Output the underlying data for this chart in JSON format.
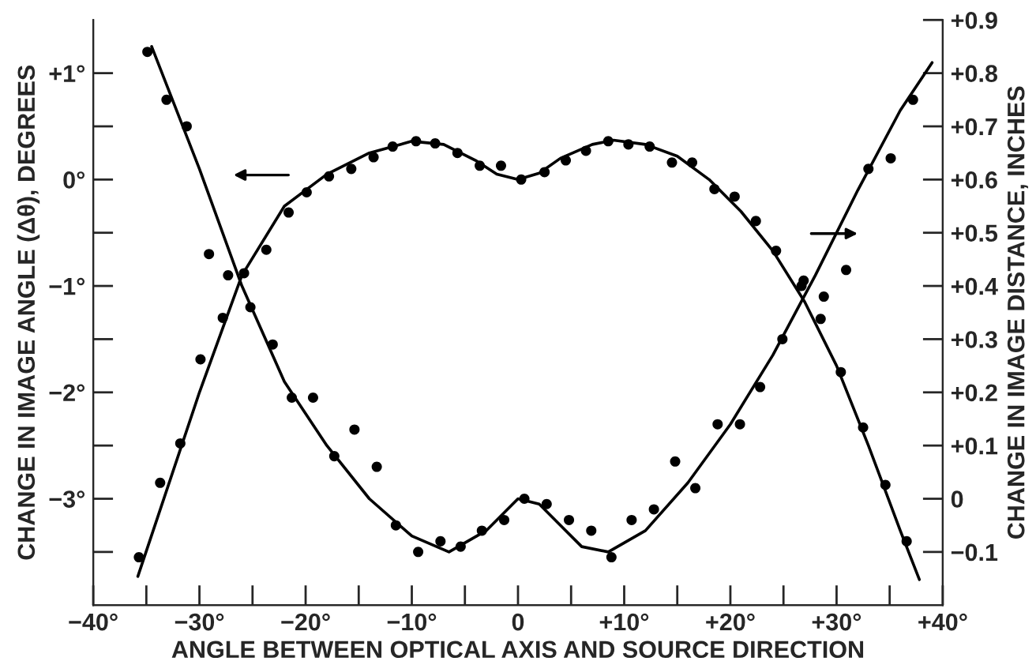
{
  "chart_data": {
    "type": "scatter",
    "xlabel": "ANGLE BETWEEN OPTICAL AXIS AND SOURCE DIRECTION",
    "ylabel": "CHANGE IN IMAGE ANGLE (Δθ), DEGREES",
    "y2label": "CHANGE IN IMAGE DISTANCE, INCHES",
    "xlim": [
      -40,
      40
    ],
    "xticks": [
      {
        "value": -40,
        "label": "−40°"
      },
      {
        "value": -35,
        "label": null
      },
      {
        "value": -30,
        "label": "−30°"
      },
      {
        "value": -25,
        "label": null
      },
      {
        "value": -20,
        "label": "−20°"
      },
      {
        "value": -15,
        "label": null
      },
      {
        "value": -10,
        "label": "−10°"
      },
      {
        "value": -5,
        "label": null
      },
      {
        "value": 0,
        "label": "0"
      },
      {
        "value": 5,
        "label": null
      },
      {
        "value": 10,
        "label": "+10°"
      },
      {
        "value": 15,
        "label": null
      },
      {
        "value": 20,
        "label": "+20°"
      },
      {
        "value": 25,
        "label": null
      },
      {
        "value": 30,
        "label": "+30°"
      },
      {
        "value": 35,
        "label": null
      },
      {
        "value": 40,
        "label": "+40°"
      }
    ],
    "ylim": [
      -4,
      1.5
    ],
    "yticks": [
      {
        "value": 1,
        "label": "+1°"
      },
      {
        "value": 0.5,
        "label": null
      },
      {
        "value": 0,
        "label": "0°"
      },
      {
        "value": -0.5,
        "label": null
      },
      {
        "value": -1,
        "label": "−1°"
      },
      {
        "value": -1.5,
        "label": null
      },
      {
        "value": -2,
        "label": "−2°"
      },
      {
        "value": -2.5,
        "label": null
      },
      {
        "value": -3,
        "label": "−3°"
      },
      {
        "value": -3.5,
        "label": null
      }
    ],
    "y2lim": [
      -0.2,
      0.9
    ],
    "y2ticks": [
      {
        "value": 0.9,
        "label": "+0.9"
      },
      {
        "value": 0.8,
        "label": "+0.8"
      },
      {
        "value": 0.7,
        "label": "+0.7"
      },
      {
        "value": 0.6,
        "label": "+0.6"
      },
      {
        "value": 0.5,
        "label": "+0.5"
      },
      {
        "value": 0.4,
        "label": "+0.4"
      },
      {
        "value": 0.3,
        "label": "+0.3"
      },
      {
        "value": 0.2,
        "label": "+0.2"
      },
      {
        "value": 0.1,
        "label": "+0.1"
      },
      {
        "value": 0,
        "label": "0"
      },
      {
        "value": -0.1,
        "label": "−0.1"
      }
    ],
    "marker": "circle",
    "grid": false,
    "legend": false,
    "series": [
      {
        "axis": "y",
        "color": "#000000",
        "x": [
          -35.7,
          -33.7,
          -31.8,
          -29.9,
          -27.8,
          -25.8,
          -23.7,
          -21.6,
          -19.9,
          -17.8,
          -15.7,
          -13.6,
          -11.8,
          -9.6,
          -7.8,
          -5.7,
          -3.6,
          -1.6,
          0.3,
          2.5,
          4.5,
          6.4,
          8.5,
          10.4,
          12.4,
          14.5,
          16.4,
          18.5,
          20.4,
          22.4,
          24.3,
          26.7,
          28.5,
          30.4,
          32.5,
          34.6,
          36.6
        ],
        "values": [
          -3.55,
          -2.85,
          -2.48,
          -1.69,
          -1.3,
          -0.88,
          -0.66,
          -0.31,
          -0.12,
          0.03,
          0.1,
          0.21,
          0.31,
          0.36,
          0.34,
          0.25,
          0.13,
          0.13,
          0.0,
          0.07,
          0.18,
          0.27,
          0.36,
          0.33,
          0.31,
          0.16,
          0.16,
          -0.09,
          -0.16,
          -0.39,
          -0.67,
          -1.0,
          -1.31,
          -1.81,
          -2.33,
          -2.87,
          -3.4
        ]
      },
      {
        "type": "line",
        "axis": "y",
        "color": "#000000",
        "marker": "none",
        "x": [
          -35.8,
          -30,
          -26,
          -22,
          -18,
          -14,
          -10,
          -7,
          -4,
          -2,
          0,
          2,
          4,
          7,
          9,
          12,
          15,
          18,
          21,
          24,
          27,
          30,
          33,
          36,
          37.8
        ],
        "values": [
          -3.73,
          -2.0,
          -0.9,
          -0.25,
          0.05,
          0.25,
          0.36,
          0.33,
          0.18,
          0.05,
          0.0,
          0.06,
          0.2,
          0.33,
          0.37,
          0.33,
          0.22,
          0.0,
          -0.3,
          -0.67,
          -1.15,
          -1.75,
          -2.5,
          -3.3,
          -3.76
        ]
      },
      {
        "axis": "y2",
        "color": "#000000",
        "x": [
          -34.9,
          -33.1,
          -31.2,
          -29.1,
          -27.3,
          -25.2,
          -23.1,
          -21.3,
          -19.3,
          -17.3,
          -15.4,
          -13.3,
          -11.5,
          -9.4,
          -7.3,
          -5.4,
          -3.4,
          -1.3,
          0.6,
          2.7,
          4.8,
          6.9,
          8.8,
          10.7,
          12.8,
          14.8,
          16.7,
          18.8,
          20.9,
          22.8,
          24.9,
          26.9,
          28.8,
          30.9,
          33.0,
          35.1,
          37.2
        ],
        "values": [
          0.84,
          0.75,
          0.7,
          0.46,
          0.42,
          0.36,
          0.29,
          0.19,
          0.19,
          0.08,
          0.13,
          0.06,
          -0.05,
          -0.1,
          -0.08,
          -0.09,
          -0.06,
          -0.04,
          0.0,
          -0.01,
          -0.04,
          -0.06,
          -0.11,
          -0.04,
          -0.02,
          0.07,
          0.02,
          0.14,
          0.14,
          0.21,
          0.3,
          0.41,
          0.38,
          0.43,
          0.62,
          0.64,
          0.75
        ]
      },
      {
        "type": "line",
        "axis": "y2",
        "color": "#000000",
        "marker": "none",
        "x": [
          -34.5,
          -30,
          -26,
          -22,
          -18,
          -14,
          -10,
          -6.5,
          -3,
          0,
          2,
          4,
          6,
          8.5,
          12,
          16,
          20,
          24,
          28,
          32,
          36,
          39
        ],
        "values": [
          0.85,
          0.62,
          0.4,
          0.22,
          0.1,
          0.0,
          -0.07,
          -0.1,
          -0.06,
          0.0,
          -0.01,
          -0.05,
          -0.09,
          -0.1,
          -0.06,
          0.03,
          0.14,
          0.27,
          0.42,
          0.58,
          0.73,
          0.82
        ]
      }
    ]
  }
}
